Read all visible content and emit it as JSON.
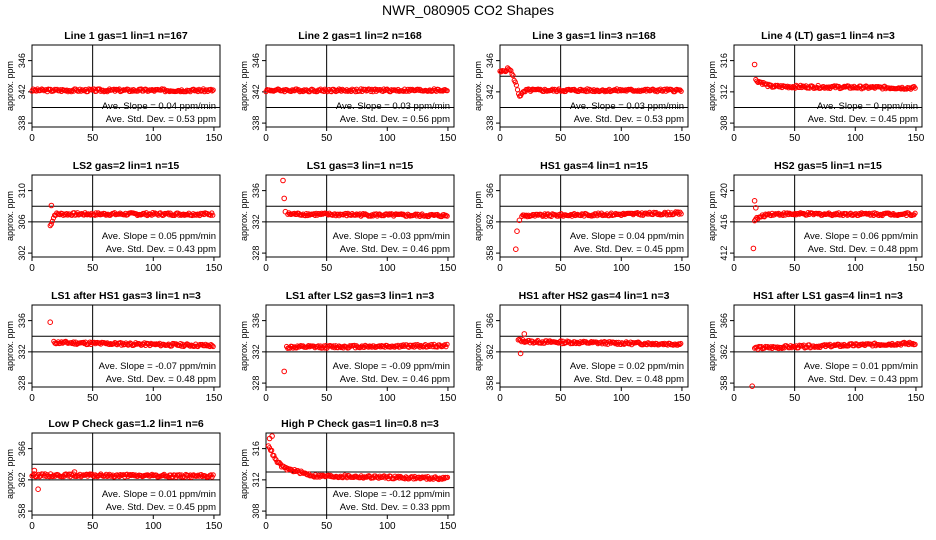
{
  "title": "NWR_080905   CO2 Shapes",
  "ylabel": "approx. ppm",
  "slope_prefix": "Ave. Slope = ",
  "std_prefix": "Ave. Std. Dev. = ",
  "colors": {
    "points": "#ff0000",
    "axes": "#000000",
    "background": "#ffffff"
  },
  "chart_data": [
    {
      "type": "scatter",
      "title": "Line 1 gas=1 lin=1 n=167",
      "xlim": [
        0,
        155
      ],
      "xticks": [
        0,
        50,
        100,
        150
      ],
      "ylim": [
        337.5,
        348
      ],
      "yticks": [
        338,
        342,
        346
      ],
      "hlines": [
        340,
        344
      ],
      "vline": 50,
      "slope": "0.04",
      "slope_unit": "ppm/min",
      "std": "0.53",
      "std_unit": "ppm",
      "start_x": 0,
      "segments": [
        [
          0,
          342.2
        ],
        [
          150,
          342.2
        ]
      ],
      "spikes": []
    },
    {
      "type": "scatter",
      "title": "Line 2 gas=1 lin=2 n=168",
      "xlim": [
        0,
        155
      ],
      "xticks": [
        0,
        50,
        100,
        150
      ],
      "ylim": [
        337.5,
        348
      ],
      "yticks": [
        338,
        342,
        346
      ],
      "hlines": [
        340,
        344
      ],
      "vline": 50,
      "slope": "0.03",
      "slope_unit": "ppm/min",
      "std": "0.56",
      "std_unit": "ppm",
      "start_x": 0,
      "segments": [
        [
          0,
          342.2
        ],
        [
          150,
          342.2
        ]
      ],
      "spikes": []
    },
    {
      "type": "scatter",
      "title": "Line 3 gas=1 lin=3 n=168",
      "xlim": [
        0,
        155
      ],
      "xticks": [
        0,
        50,
        100,
        150
      ],
      "ylim": [
        337.5,
        348
      ],
      "yticks": [
        338,
        342,
        346
      ],
      "hlines": [
        340,
        344
      ],
      "vline": 50,
      "slope": "0.03",
      "slope_unit": "ppm/min",
      "std": "0.53",
      "std_unit": "ppm",
      "start_x": 0,
      "segments": [
        [
          0,
          344.5
        ],
        [
          8,
          345
        ],
        [
          12,
          343.5
        ],
        [
          16,
          341.5
        ],
        [
          22,
          342.2
        ],
        [
          150,
          342.2
        ]
      ],
      "spikes": []
    },
    {
      "type": "scatter",
      "title": "Line 4 (LT) gas=1 lin=4 n=3",
      "xlim": [
        0,
        155
      ],
      "xticks": [
        0,
        50,
        100,
        150
      ],
      "ylim": [
        307.5,
        318
      ],
      "yticks": [
        308,
        312,
        316
      ],
      "hlines": [
        310,
        314
      ],
      "vline": 50,
      "slope": "0",
      "slope_unit": "ppm/min",
      "std": "0.45",
      "std_unit": "ppm",
      "start_x": 18,
      "segments": [
        [
          18,
          313.5
        ],
        [
          30,
          312.7
        ],
        [
          150,
          312.5
        ]
      ],
      "spikes": [
        [
          17,
          315.5
        ]
      ]
    },
    {
      "type": "scatter",
      "title": "LS2 gas=2 lin=1 n=15",
      "xlim": [
        0,
        155
      ],
      "xticks": [
        0,
        50,
        100,
        150
      ],
      "ylim": [
        301.5,
        312
      ],
      "yticks": [
        302,
        306,
        310
      ],
      "hlines": [
        306,
        308
      ],
      "vline": 50,
      "slope": "0.05",
      "slope_unit": "ppm/min",
      "std": "0.43",
      "std_unit": "ppm",
      "start_x": 15,
      "segments": [
        [
          15,
          305.5
        ],
        [
          19,
          307
        ],
        [
          150,
          307
        ]
      ],
      "spikes": [
        [
          16,
          308.1
        ]
      ]
    },
    {
      "type": "scatter",
      "title": "LS1 gas=3 lin=1 n=15",
      "xlim": [
        0,
        155
      ],
      "xticks": [
        0,
        50,
        100,
        150
      ],
      "ylim": [
        327.5,
        338
      ],
      "yticks": [
        328,
        332,
        336
      ],
      "hlines": [
        332,
        334
      ],
      "vline": 50,
      "slope": "-0.03",
      "slope_unit": "ppm/min",
      "std": "0.46",
      "std_unit": "ppm",
      "start_x": 18,
      "segments": [
        [
          18,
          333
        ],
        [
          150,
          332.8
        ]
      ],
      "spikes": [
        [
          14,
          337.3
        ],
        [
          15,
          335
        ],
        [
          16,
          333.3
        ]
      ]
    },
    {
      "type": "scatter",
      "title": "HS1 gas=4 lin=1 n=15",
      "xlim": [
        0,
        155
      ],
      "xticks": [
        0,
        50,
        100,
        150
      ],
      "ylim": [
        357.5,
        368
      ],
      "yticks": [
        358,
        362,
        366
      ],
      "hlines": [
        362,
        364
      ],
      "vline": 50,
      "slope": "0.04",
      "slope_unit": "ppm/min",
      "std": "0.45",
      "std_unit": "ppm",
      "start_x": 18,
      "segments": [
        [
          18,
          362.8
        ],
        [
          150,
          363.1
        ]
      ],
      "spikes": [
        [
          13,
          358.5
        ],
        [
          14,
          360.8
        ],
        [
          16,
          362.2
        ]
      ]
    },
    {
      "type": "scatter",
      "title": "HS2 gas=5 lin=1 n=15",
      "xlim": [
        0,
        155
      ],
      "xticks": [
        0,
        50,
        100,
        150
      ],
      "ylim": [
        411.5,
        422
      ],
      "yticks": [
        412,
        416,
        420
      ],
      "hlines": [
        416,
        418
      ],
      "vline": 50,
      "slope": "0.06",
      "slope_unit": "ppm/min",
      "std": "0.48",
      "std_unit": "ppm",
      "start_x": 17,
      "segments": [
        [
          17,
          416.3
        ],
        [
          28,
          417
        ],
        [
          150,
          417
        ]
      ],
      "spikes": [
        [
          16,
          412.6
        ],
        [
          17,
          418.7
        ],
        [
          18,
          417.8
        ]
      ]
    },
    {
      "type": "scatter",
      "title": "LS1 after HS1 gas=3 lin=1 n=3",
      "xlim": [
        0,
        155
      ],
      "xticks": [
        0,
        50,
        100,
        150
      ],
      "ylim": [
        327.5,
        338
      ],
      "yticks": [
        328,
        332,
        336
      ],
      "hlines": [
        332,
        334
      ],
      "vline": 50,
      "slope": "-0.07",
      "slope_unit": "ppm/min",
      "std": "0.48",
      "std_unit": "ppm",
      "start_x": 18,
      "segments": [
        [
          18,
          333.2
        ],
        [
          150,
          332.8
        ]
      ],
      "spikes": [
        [
          15,
          335.8
        ]
      ]
    },
    {
      "type": "scatter",
      "title": "LS1 after LS2 gas=3 lin=1 n=3",
      "xlim": [
        0,
        155
      ],
      "xticks": [
        0,
        50,
        100,
        150
      ],
      "ylim": [
        327.5,
        338
      ],
      "yticks": [
        328,
        332,
        336
      ],
      "hlines": [
        332,
        334
      ],
      "vline": 50,
      "slope": "-0.09",
      "slope_unit": "ppm/min",
      "std": "0.46",
      "std_unit": "ppm",
      "start_x": 17,
      "segments": [
        [
          17,
          332.6
        ],
        [
          150,
          332.8
        ]
      ],
      "spikes": [
        [
          15,
          329.5
        ]
      ]
    },
    {
      "type": "scatter",
      "title": "HS1 after HS2 gas=4 lin=1 n=3",
      "xlim": [
        0,
        155
      ],
      "xticks": [
        0,
        50,
        100,
        150
      ],
      "ylim": [
        357.5,
        368
      ],
      "yticks": [
        358,
        362,
        366
      ],
      "hlines": [
        362,
        364
      ],
      "vline": 50,
      "slope": "0.02",
      "slope_unit": "ppm/min",
      "std": "0.48",
      "std_unit": "ppm",
      "start_x": 15,
      "segments": [
        [
          15,
          363.5
        ],
        [
          25,
          363.3
        ],
        [
          150,
          363
        ]
      ],
      "spikes": [
        [
          17,
          361.8
        ],
        [
          20,
          364.3
        ]
      ]
    },
    {
      "type": "scatter",
      "title": "HS1 after LS1 gas=4 lin=1 n=3",
      "xlim": [
        0,
        155
      ],
      "xticks": [
        0,
        50,
        100,
        150
      ],
      "ylim": [
        357.5,
        368
      ],
      "yticks": [
        358,
        362,
        366
      ],
      "hlines": [
        362,
        364
      ],
      "vline": 50,
      "slope": "0.01",
      "slope_unit": "ppm/min",
      "std": "0.43",
      "std_unit": "ppm",
      "start_x": 17,
      "segments": [
        [
          17,
          362.5
        ],
        [
          150,
          363.1
        ]
      ],
      "spikes": [
        [
          15,
          357.6
        ]
      ]
    },
    {
      "type": "scatter",
      "title": "Low P Check gas=1.2 lin=1 n=6",
      "xlim": [
        0,
        155
      ],
      "xticks": [
        0,
        50,
        100,
        150
      ],
      "ylim": [
        357.5,
        368
      ],
      "yticks": [
        358,
        362,
        366
      ],
      "hlines": [
        362,
        364
      ],
      "vline": 50,
      "slope": "0.01",
      "slope_unit": "ppm/min",
      "std": "0.45",
      "std_unit": "ppm",
      "start_x": 0,
      "segments": [
        [
          0,
          362.6
        ],
        [
          150,
          362.5
        ]
      ],
      "spikes": [
        [
          2,
          363.2
        ],
        [
          5,
          360.8
        ],
        [
          35,
          363
        ]
      ]
    },
    {
      "type": "scatter",
      "title": "High P Check gas=1 lin=0.8 n=3",
      "xlim": [
        0,
        155
      ],
      "xticks": [
        0,
        50,
        100,
        150
      ],
      "ylim": [
        307.5,
        318
      ],
      "yticks": [
        308,
        312,
        316
      ],
      "hlines": [
        311,
        313
      ],
      "vline": 50,
      "slope": "-0.12",
      "slope_unit": "ppm/min",
      "std": "0.33",
      "std_unit": "ppm",
      "start_x": 2,
      "segments": [
        [
          2,
          316.5
        ],
        [
          8,
          314.5
        ],
        [
          15,
          313.5
        ],
        [
          40,
          312.5
        ],
        [
          150,
          312.2
        ]
      ],
      "spikes": [
        [
          3,
          317.3
        ],
        [
          5,
          317.6
        ]
      ]
    }
  ]
}
